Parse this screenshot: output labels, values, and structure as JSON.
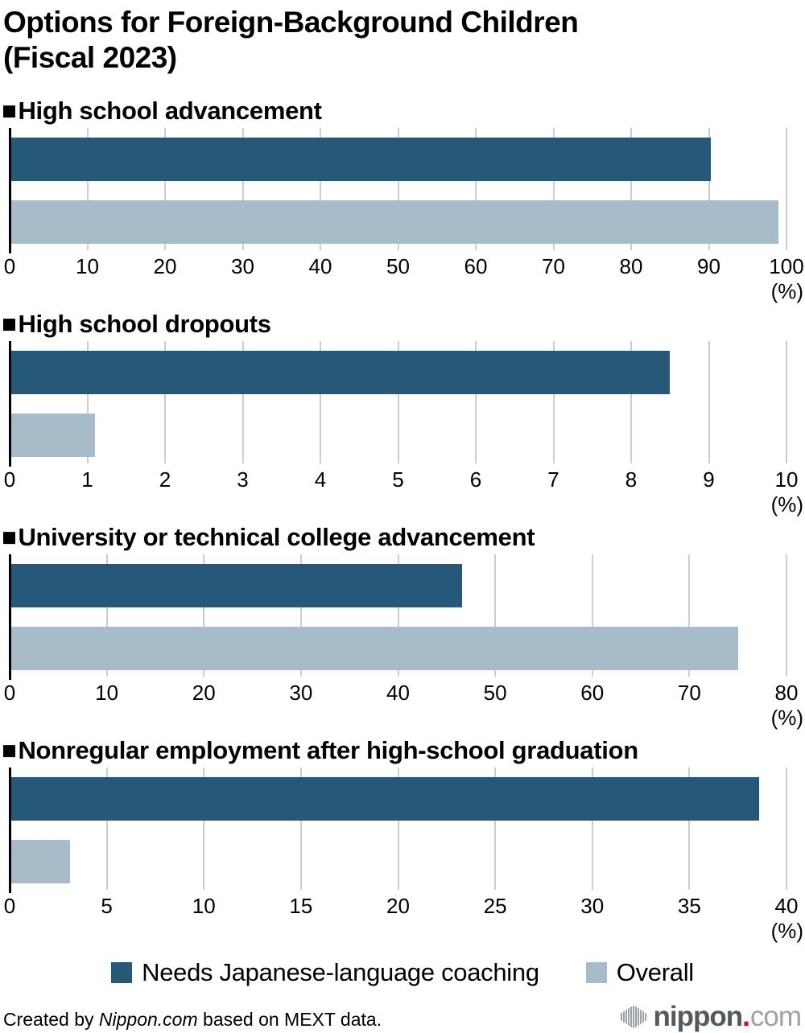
{
  "title_lines": [
    "Options for Foreign-Background Children",
    "(Fiscal 2023)"
  ],
  "section_bullet": "■",
  "colors": {
    "coaching": "#26587a",
    "overall": "#a8bbc8",
    "grid": "#cdcdcd",
    "axis": "#000000"
  },
  "chart_data": [
    {
      "type": "bar",
      "title": "High school advancement",
      "series": [
        {
          "name": "Needs Japanese-language coaching",
          "value": 90.3
        },
        {
          "name": "Overall",
          "value": 99.0
        }
      ],
      "xlim": [
        0,
        100
      ],
      "ticks": [
        0,
        10,
        20,
        30,
        40,
        50,
        60,
        70,
        80,
        90,
        100
      ],
      "unit": "(%)",
      "grid": true,
      "orientation": "horizontal"
    },
    {
      "type": "bar",
      "title": "High school dropouts",
      "series": [
        {
          "name": "Needs Japanese-language coaching",
          "value": 8.5
        },
        {
          "name": "Overall",
          "value": 1.1
        }
      ],
      "xlim": [
        0,
        10
      ],
      "ticks": [
        0,
        1,
        2,
        3,
        4,
        5,
        6,
        7,
        8,
        9,
        10
      ],
      "unit": "(%)",
      "grid": true,
      "orientation": "horizontal"
    },
    {
      "type": "bar",
      "title": "University or technical college advancement",
      "series": [
        {
          "name": "Needs Japanese-language coaching",
          "value": 46.6
        },
        {
          "name": "Overall",
          "value": 75.0
        }
      ],
      "xlim": [
        0,
        80
      ],
      "ticks": [
        0,
        10,
        20,
        30,
        40,
        50,
        60,
        70,
        80
      ],
      "unit": "(%)",
      "grid": true,
      "orientation": "horizontal"
    },
    {
      "type": "bar",
      "title": "Nonregular employment after high-school graduation",
      "series": [
        {
          "name": "Needs Japanese-language coaching",
          "value": 38.6
        },
        {
          "name": "Overall",
          "value": 3.1
        }
      ],
      "xlim": [
        0,
        40
      ],
      "ticks": [
        0,
        5,
        10,
        15,
        20,
        25,
        30,
        35,
        40
      ],
      "unit": "(%)",
      "grid": true,
      "orientation": "horizontal"
    }
  ],
  "legend": {
    "items": [
      {
        "label": "Needs Japanese-language coaching",
        "color_key": "coaching"
      },
      {
        "label": "Overall",
        "color_key": "overall"
      }
    ]
  },
  "footer": {
    "credit_prefix": "Created by ",
    "credit_source": "Nippon.com",
    "credit_suffix": " based on MEXT data.",
    "logo": {
      "word": "nippon",
      "dot": ".",
      "tld": "com"
    }
  }
}
